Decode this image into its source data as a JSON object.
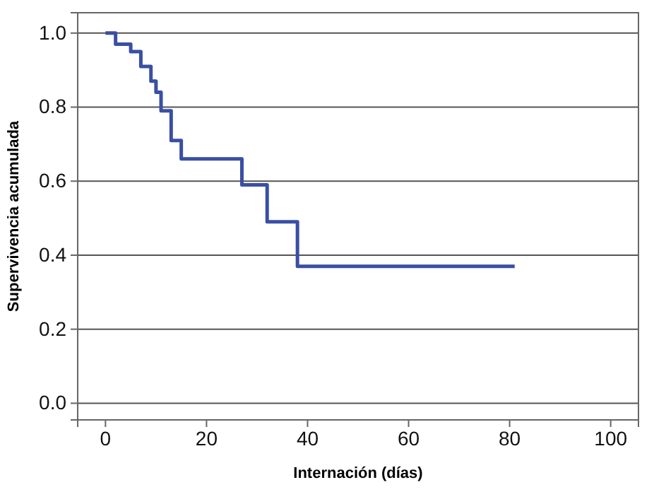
{
  "chart_data": {
    "type": "step",
    "xlabel": "Internación (días)",
    "ylabel": "Supervivencia acumulada",
    "x": [
      0,
      2,
      5,
      7,
      9,
      10,
      11,
      13,
      15,
      27,
      32,
      38,
      81
    ],
    "series": [
      {
        "color": "#3a4fa3",
        "values": [
          1.0,
          0.97,
          0.95,
          0.91,
          0.87,
          0.84,
          0.79,
          0.71,
          0.66,
          0.59,
          0.49,
          0.37,
          0.37
        ]
      }
    ],
    "xlim": [
      -5.5,
      105.5
    ],
    "xticks": [
      0,
      20,
      40,
      60,
      80,
      100
    ],
    "ylim": [
      -0.045,
      1.055
    ],
    "yticks": [
      {
        "value": 0,
        "label": "0.0"
      },
      0.2,
      0.4,
      0.6,
      0.8,
      {
        "value": 1,
        "label": "1.0"
      }
    ],
    "grid": "y",
    "line_style": "solid"
  }
}
